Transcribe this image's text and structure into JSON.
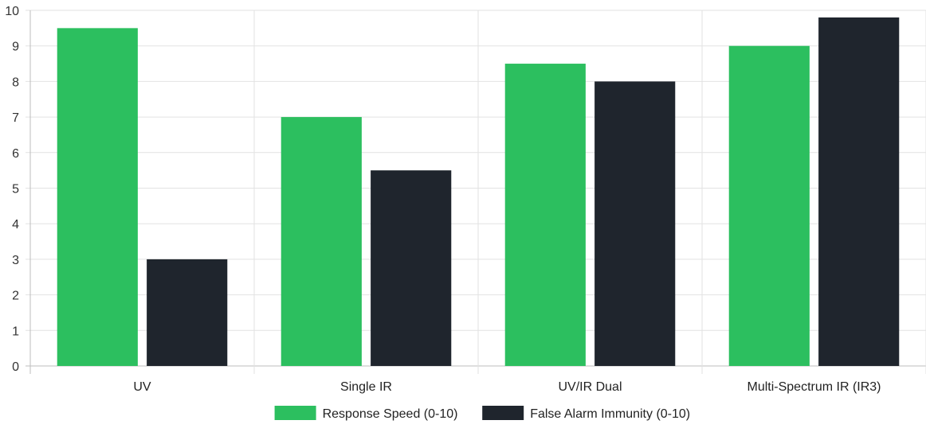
{
  "chart_data": {
    "type": "bar",
    "categories": [
      "UV",
      "Single IR",
      "UV/IR Dual",
      "Multi-Spectrum IR (IR3)"
    ],
    "series": [
      {
        "name": "Response Speed (0-10)",
        "values": [
          9.5,
          7,
          8.5,
          9
        ],
        "color": "#2cbf5f"
      },
      {
        "name": "False Alarm Immunity (0-10)",
        "values": [
          3,
          5.5,
          8,
          9.8
        ],
        "color": "#1f252d"
      }
    ],
    "ylim": [
      0,
      10
    ],
    "yticks": [
      0,
      1,
      2,
      3,
      4,
      5,
      6,
      7,
      8,
      9,
      10
    ],
    "grid": true,
    "legend": "bottom"
  }
}
